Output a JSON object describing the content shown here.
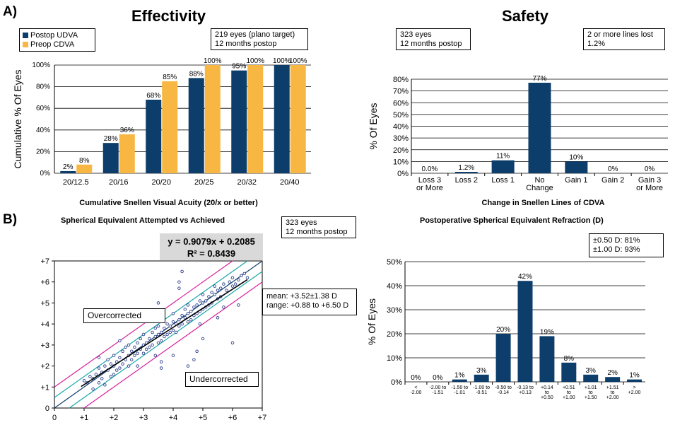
{
  "sections": {
    "a": "A)",
    "b": "B)"
  },
  "colors": {
    "udva": "#0d3e6b",
    "cdva": "#f7b742",
    "bar": "#0d3e6b",
    "fit": "#000000",
    "band_inner": "#1aa6a6",
    "band_outer": "#d6229c",
    "points": "#2c3e8c",
    "grid": "#000000"
  },
  "chart_data": [
    {
      "type": "bar",
      "title": "Effectivity",
      "xlabel": "Cumulative Snellen Visual Acuity (20/x or better)",
      "ylabel": "Cumulative % Of Eyes",
      "categories": [
        "20/12.5",
        "20/16",
        "20/20",
        "20/25",
        "20/32",
        "20/40"
      ],
      "series": [
        {
          "name": "Postop UDVA",
          "values": [
            2,
            28,
            68,
            88,
            95,
            100
          ],
          "labels": [
            "2%",
            "28%",
            "68%",
            "88%",
            "95%",
            "100%"
          ]
        },
        {
          "name": "Preop CDVA",
          "values": [
            8,
            36,
            85,
            100,
            100,
            100
          ],
          "labels": [
            "8%",
            "36%",
            "85%",
            "100%",
            "100%",
            "100%"
          ]
        }
      ],
      "ylim": [
        0,
        100
      ],
      "yticks": [
        "0%",
        "20%",
        "40%",
        "60%",
        "80%",
        "100%"
      ],
      "annotation": [
        "219 eyes (plano target)",
        "12 months postop"
      ],
      "legend_position": "top-left"
    },
    {
      "type": "bar",
      "title": "Safety",
      "xlabel": "Change in Snellen Lines of CDVA",
      "ylabel": "% Of Eyes",
      "categories": [
        [
          "Loss 3",
          "or More"
        ],
        [
          "Loss 2"
        ],
        [
          "Loss 1"
        ],
        [
          "No",
          "Change"
        ],
        [
          "Gain 1"
        ],
        [
          "Gain 2"
        ],
        [
          "Gain 3",
          "or More"
        ]
      ],
      "values": [
        0.0,
        1.2,
        11,
        77,
        10,
        0,
        0
      ],
      "labels": [
        "0.0%",
        "1.2%",
        "11%",
        "77%",
        "10%",
        "0%",
        "0%"
      ],
      "ylim": [
        0,
        80
      ],
      "yticks": [
        "0%",
        "10%",
        "20%",
        "30%",
        "40%",
        "50%",
        "60%",
        "70%",
        "80%"
      ],
      "annotations": [
        [
          "323 eyes",
          "12 months postop"
        ],
        [
          "2 or more lines lost",
          "1.2%"
        ]
      ]
    },
    {
      "type": "scatter",
      "title": "Spherical Equivalent Attempted vs Achieved",
      "xlim": [
        0,
        7
      ],
      "ylim": [
        0,
        7
      ],
      "xticks": [
        "0",
        "+1",
        "+2",
        "+3",
        "+4",
        "+5",
        "+6",
        "+7"
      ],
      "yticks": [
        "0",
        "+1",
        "+2",
        "+3",
        "+4",
        "+5",
        "+6",
        "+7"
      ],
      "fit": {
        "slope": 0.9079,
        "intercept": 0.2085,
        "equation": "y = 0.9079x + 0.2085",
        "r2": "R² = 0.8439"
      },
      "bands": [
        0.5,
        1.0
      ],
      "region_labels": {
        "over": "Overcorrected",
        "under": "Undercorrected"
      },
      "annotations": [
        [
          "323 eyes",
          "12 months postop"
        ],
        [
          "mean: +3.52±1.38 D",
          "range: +0.88 to +6.50 D"
        ]
      ],
      "points": [
        [
          1.0,
          1.3
        ],
        [
          1.1,
          1.2
        ],
        [
          1.2,
          1.5
        ],
        [
          1.3,
          1.4
        ],
        [
          1.3,
          0.9
        ],
        [
          1.4,
          1.6
        ],
        [
          1.5,
          1.2
        ],
        [
          1.5,
          1.9
        ],
        [
          1.6,
          1.7
        ],
        [
          1.6,
          1.4
        ],
        [
          1.7,
          2.0
        ],
        [
          1.7,
          1.1
        ],
        [
          1.8,
          1.8
        ],
        [
          1.8,
          2.3
        ],
        [
          1.9,
          1.5
        ],
        [
          1.9,
          2.1
        ],
        [
          2.0,
          2.0
        ],
        [
          2.0,
          1.6
        ],
        [
          2.0,
          2.5
        ],
        [
          2.1,
          2.2
        ],
        [
          2.1,
          1.8
        ],
        [
          2.2,
          2.4
        ],
        [
          2.2,
          1.9
        ],
        [
          2.3,
          2.7
        ],
        [
          2.3,
          2.1
        ],
        [
          2.4,
          2.3
        ],
        [
          2.4,
          2.9
        ],
        [
          2.5,
          2.5
        ],
        [
          2.5,
          2.0
        ],
        [
          2.5,
          3.0
        ],
        [
          2.6,
          2.7
        ],
        [
          2.6,
          2.3
        ],
        [
          2.7,
          2.9
        ],
        [
          2.7,
          2.5
        ],
        [
          2.8,
          3.1
        ],
        [
          2.8,
          2.6
        ],
        [
          2.9,
          2.8
        ],
        [
          2.9,
          3.3
        ],
        [
          3.0,
          3.0
        ],
        [
          3.0,
          2.6
        ],
        [
          3.0,
          3.5
        ],
        [
          3.1,
          3.1
        ],
        [
          3.1,
          2.8
        ],
        [
          3.2,
          3.3
        ],
        [
          3.2,
          2.9
        ],
        [
          3.3,
          3.6
        ],
        [
          3.3,
          3.0
        ],
        [
          3.4,
          3.4
        ],
        [
          3.4,
          3.8
        ],
        [
          3.5,
          3.5
        ],
        [
          3.5,
          3.1
        ],
        [
          3.5,
          3.9
        ],
        [
          3.6,
          3.6
        ],
        [
          3.6,
          3.2
        ],
        [
          3.7,
          3.8
        ],
        [
          3.7,
          3.4
        ],
        [
          3.8,
          4.0
        ],
        [
          3.8,
          3.5
        ],
        [
          3.9,
          3.9
        ],
        [
          3.9,
          3.6
        ],
        [
          4.0,
          4.1
        ],
        [
          4.0,
          3.7
        ],
        [
          4.0,
          4.5
        ],
        [
          4.1,
          4.0
        ],
        [
          4.1,
          3.6
        ],
        [
          4.2,
          4.2
        ],
        [
          4.2,
          3.9
        ],
        [
          4.3,
          4.4
        ],
        [
          4.3,
          4.0
        ],
        [
          4.4,
          4.3
        ],
        [
          4.4,
          4.7
        ],
        [
          4.5,
          4.5
        ],
        [
          4.5,
          4.1
        ],
        [
          4.5,
          4.9
        ],
        [
          4.6,
          4.6
        ],
        [
          4.6,
          4.2
        ],
        [
          4.7,
          4.8
        ],
        [
          4.7,
          4.4
        ],
        [
          4.8,
          4.9
        ],
        [
          4.8,
          4.5
        ],
        [
          4.9,
          5.1
        ],
        [
          4.9,
          4.6
        ],
        [
          5.0,
          5.0
        ],
        [
          5.0,
          4.7
        ],
        [
          5.0,
          5.4
        ],
        [
          5.1,
          5.1
        ],
        [
          5.1,
          4.8
        ],
        [
          5.2,
          5.3
        ],
        [
          5.2,
          4.9
        ],
        [
          5.3,
          5.5
        ],
        [
          5.3,
          5.0
        ],
        [
          5.4,
          5.4
        ],
        [
          5.4,
          5.8
        ],
        [
          5.5,
          5.6
        ],
        [
          5.5,
          5.2
        ],
        [
          5.6,
          5.7
        ],
        [
          5.6,
          5.3
        ],
        [
          5.7,
          5.9
        ],
        [
          5.8,
          5.6
        ],
        [
          5.9,
          6.0
        ],
        [
          6.0,
          5.8
        ],
        [
          6.0,
          6.2
        ],
        [
          6.1,
          5.9
        ],
        [
          6.2,
          6.1
        ],
        [
          6.3,
          6.3
        ],
        [
          6.4,
          6.4
        ],
        [
          6.5,
          6.2
        ],
        [
          4.5,
          2.0
        ],
        [
          4.7,
          2.3
        ],
        [
          4.8,
          2.7
        ],
        [
          5.0,
          3.3
        ],
        [
          6.0,
          3.1
        ],
        [
          5.5,
          4.3
        ],
        [
          6.2,
          4.9
        ],
        [
          3.6,
          1.9
        ],
        [
          3.6,
          2.2
        ],
        [
          3.4,
          2.5
        ],
        [
          4.0,
          2.5
        ],
        [
          2.8,
          2.0
        ],
        [
          4.9,
          4.0
        ],
        [
          5.7,
          4.8
        ],
        [
          4.2,
          6.0
        ],
        [
          4.3,
          6.5
        ],
        [
          4.2,
          5.7
        ],
        [
          3.5,
          5.0
        ],
        [
          2.2,
          3.2
        ],
        [
          1.5,
          2.4
        ]
      ]
    },
    {
      "type": "bar",
      "title": "Postoperative Spherical Equivalent Refraction (D)",
      "ylabel": "% Of Eyes",
      "categories": [
        [
          "<",
          "-2.00"
        ],
        [
          "-2.00 to",
          "-1.51"
        ],
        [
          "-1.50 to",
          "-1.01"
        ],
        [
          "-1.00 to",
          "-0.51"
        ],
        [
          "-0.50 to",
          "-0.14"
        ],
        [
          "-0.13 to",
          "+0.13"
        ],
        [
          "+0.14",
          "to",
          "+0.50"
        ],
        [
          "+0.51",
          "to",
          "+1.00"
        ],
        [
          "+1.01",
          "to",
          "+1.50"
        ],
        [
          "+1.51",
          "to",
          "+2.00"
        ],
        [
          ">",
          "+2.00"
        ]
      ],
      "values": [
        0,
        0,
        1,
        3,
        20,
        42,
        19,
        8,
        3,
        2,
        1
      ],
      "labels": [
        "0%",
        "0%",
        "1%",
        "3%",
        "20%",
        "42%",
        "19%",
        "8%",
        "3%",
        "2%",
        "1%"
      ],
      "ylim": [
        0,
        50
      ],
      "yticks": [
        "0%",
        "10%",
        "20%",
        "30%",
        "40%",
        "50%"
      ],
      "annotation": [
        "±0.50 D: 81%",
        "±1.00 D: 93%"
      ]
    }
  ]
}
